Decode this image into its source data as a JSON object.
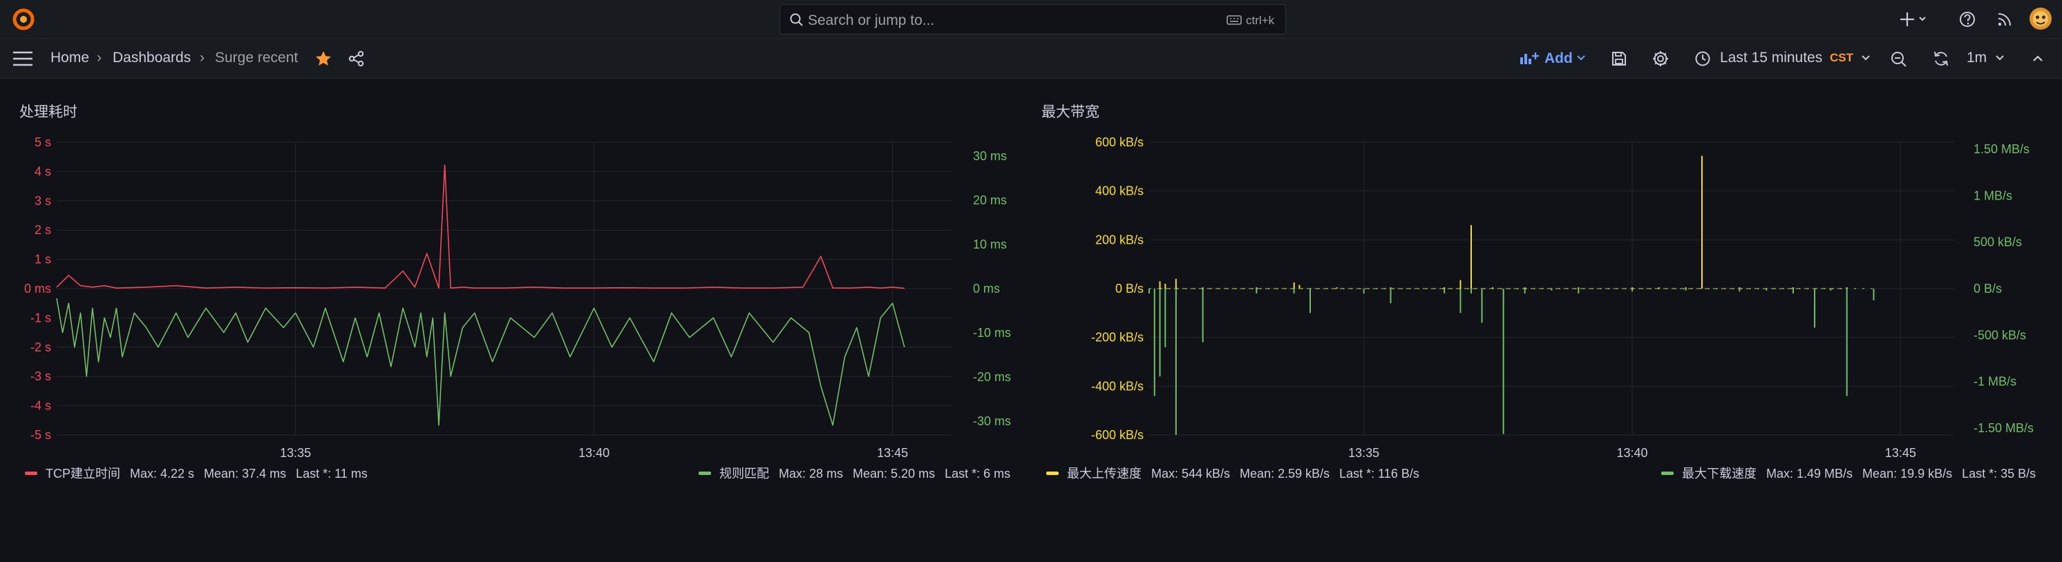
{
  "topbar": {
    "search_placeholder": "Search or jump to...",
    "search_shortcut": "ctrl+k",
    "icons": [
      "grafana-logo-icon",
      "search-icon",
      "keyboard-icon",
      "plus-icon",
      "help-icon",
      "rss-icon",
      "user-avatar"
    ]
  },
  "navbar": {
    "breadcrumbs": [
      "Home",
      "Dashboards",
      "Surge recent"
    ],
    "add_label": "Add",
    "time_range": "Last 15 minutes",
    "timezone": "CST",
    "refresh_interval": "1m",
    "colors": {
      "star": "#ff9830",
      "add": "#6e9fff",
      "timezone": "#ff9830"
    }
  },
  "panels": [
    {
      "title": "处理耗时",
      "legend": [
        {
          "name": "TCP建立时间",
          "color": "#f2495c",
          "max": "Max: 4.22 s",
          "mean": "Mean: 37.4 ms",
          "last": "Last *: 11 ms"
        },
        {
          "name": "规则匹配",
          "color": "#73bf69",
          "max": "Max: 28 ms",
          "mean": "Mean: 5.20 ms",
          "last": "Last *: 6 ms"
        }
      ]
    },
    {
      "title": "最大带宽",
      "legend": [
        {
          "name": "最大上传速度",
          "color": "#fade2a",
          "max": "Max: 544 kB/s",
          "mean": "Mean: 2.59 kB/s",
          "last": "Last *: 116 B/s"
        },
        {
          "name": "最大下载速度",
          "color": "#73bf69",
          "max": "Max: 1.49 MB/s",
          "mean": "Mean: 19.9 kB/s",
          "last": "Last *: 35 B/s"
        }
      ]
    }
  ],
  "chart_data": [
    {
      "type": "line",
      "x_ticks": [
        "13:35",
        "13:40",
        "13:45"
      ],
      "x_range": [
        "13:31",
        "13:46"
      ],
      "y_left": {
        "ticks": [
          "5 s",
          "4 s",
          "3 s",
          "2 s",
          "1 s",
          "0 ms",
          "-1 s",
          "-2 s",
          "-3 s",
          "-4 s",
          "-5 s"
        ],
        "range": [
          -5,
          5
        ],
        "unit": "s",
        "color": "#f2495c"
      },
      "y_right": {
        "ticks": [
          "30 ms",
          "20 ms",
          "10 ms",
          "0 ms",
          "-10 ms",
          "-20 ms",
          "-30 ms"
        ],
        "range": [
          -30,
          30
        ],
        "unit": "ms",
        "color": "#73bf69"
      },
      "grid": true,
      "series": [
        {
          "name": "TCP建立时间",
          "axis": "left",
          "color": "#f2495c",
          "x_min": [
            31.0,
            31.2,
            31.4,
            31.6,
            31.8,
            32.0,
            32.5,
            33.0,
            33.5,
            34.0,
            34.5,
            35.0,
            35.5,
            36.0,
            36.5,
            36.8,
            37.0,
            37.2,
            37.4,
            37.5,
            37.6,
            37.8,
            38.0,
            38.5,
            39.0,
            39.5,
            40.0,
            40.5,
            41.0,
            41.5,
            42.0,
            42.5,
            43.0,
            43.5,
            43.8,
            44.0,
            44.3,
            44.6,
            44.8,
            45.0,
            45.2
          ],
          "y": [
            0.05,
            0.45,
            0.1,
            0.05,
            0.1,
            0.02,
            0.05,
            0.1,
            0.02,
            0.05,
            0.02,
            0.03,
            0.02,
            0.05,
            0.02,
            0.6,
            0.05,
            1.2,
            0.02,
            4.22,
            0.02,
            0.05,
            0.02,
            0.02,
            0.05,
            0.02,
            0.02,
            0.03,
            0.02,
            0.02,
            0.05,
            0.02,
            0.02,
            0.05,
            1.1,
            0.02,
            0.02,
            0.05,
            0.02,
            0.05,
            0.01
          ]
        },
        {
          "name": "规则匹配",
          "axis": "right",
          "color": "#73bf69",
          "x_min": [
            31.0,
            31.1,
            31.2,
            31.3,
            31.4,
            31.5,
            31.6,
            31.7,
            31.8,
            31.9,
            32.0,
            32.1,
            32.3,
            32.5,
            32.7,
            33.0,
            33.2,
            33.5,
            33.8,
            34.0,
            34.2,
            34.5,
            34.8,
            35.0,
            35.3,
            35.5,
            35.8,
            36.0,
            36.2,
            36.4,
            36.6,
            36.8,
            37.0,
            37.1,
            37.2,
            37.3,
            37.4,
            37.5,
            37.6,
            37.8,
            38.0,
            38.3,
            38.6,
            39.0,
            39.3,
            39.6,
            40.0,
            40.3,
            40.6,
            41.0,
            41.3,
            41.6,
            42.0,
            42.3,
            42.6,
            43.0,
            43.3,
            43.6,
            43.8,
            44.0,
            44.2,
            44.4,
            44.6,
            44.8,
            45.0,
            45.2
          ],
          "y": [
            -2,
            -9,
            -3,
            -12,
            -5,
            -18,
            -4,
            -15,
            -6,
            -10,
            -4,
            -14,
            -5,
            -8,
            -12,
            -5,
            -10,
            -4,
            -9,
            -5,
            -11,
            -4,
            -8,
            -5,
            -12,
            -4,
            -15,
            -6,
            -14,
            -5,
            -16,
            -4,
            -12,
            -5,
            -14,
            -6,
            -28,
            -5,
            -18,
            -8,
            -5,
            -15,
            -6,
            -10,
            -5,
            -14,
            -4,
            -12,
            -6,
            -15,
            -5,
            -10,
            -6,
            -14,
            -5,
            -11,
            -6,
            -9,
            -20,
            -28,
            -14,
            -8,
            -18,
            -6,
            -3,
            -12
          ]
        }
      ]
    },
    {
      "type": "line",
      "x_ticks": [
        "13:35",
        "13:40",
        "13:45"
      ],
      "x_range": [
        "13:31",
        "13:46"
      ],
      "y_left": {
        "ticks": [
          "600 kB/s",
          "400 kB/s",
          "200 kB/s",
          "0 B/s",
          "-200 kB/s",
          "-400 kB/s",
          "-600 kB/s"
        ],
        "range": [
          -600,
          600
        ],
        "unit": "kB/s",
        "color": "#fade2a"
      },
      "y_right": {
        "ticks": [
          "1.50 MB/s",
          "1 MB/s",
          "500 kB/s",
          "0 B/s",
          "-500 kB/s",
          "-1 MB/s",
          "-1.50 MB/s"
        ],
        "range": [
          -1.5,
          1.5
        ],
        "unit": "MB/s",
        "color": "#73bf69"
      },
      "grid": true,
      "series": [
        {
          "name": "最大上传速度",
          "axis": "left",
          "color": "#fade2a",
          "spikes_min": [
            31.2,
            31.3,
            31.5,
            32.0,
            33.0,
            33.7,
            33.8,
            34.5,
            35.5,
            36.5,
            36.8,
            37.0,
            37.4,
            38.0,
            39.0,
            40.0,
            40.5,
            41.0,
            41.3,
            42.0,
            43.0,
            44.0
          ],
          "values": [
            30,
            20,
            40,
            5,
            5,
            25,
            15,
            5,
            5,
            5,
            35,
            260,
            5,
            5,
            5,
            5,
            5,
            5,
            544,
            5,
            5,
            5
          ]
        },
        {
          "name": "最大下载速度",
          "axis": "right",
          "color": "#73bf69",
          "spikes_min": [
            31.0,
            31.1,
            31.2,
            31.3,
            31.5,
            32.0,
            33.0,
            33.7,
            34.0,
            35.0,
            35.5,
            36.5,
            36.8,
            37.0,
            37.2,
            37.6,
            38.0,
            38.5,
            39.0,
            40.0,
            41.0,
            42.0,
            42.5,
            43.0,
            43.4,
            43.7,
            44.0,
            44.5
          ],
          "values": [
            -0.05,
            -1.1,
            -0.9,
            -0.6,
            -1.5,
            -0.55,
            -0.05,
            -0.05,
            -0.25,
            -0.05,
            -0.15,
            -0.05,
            -0.25,
            -0.05,
            -0.35,
            -1.49,
            -0.05,
            -0.02,
            -0.05,
            -0.03,
            -0.02,
            -0.03,
            -0.02,
            -0.05,
            -0.4,
            -0.02,
            -1.1,
            -0.12
          ]
        }
      ]
    }
  ]
}
